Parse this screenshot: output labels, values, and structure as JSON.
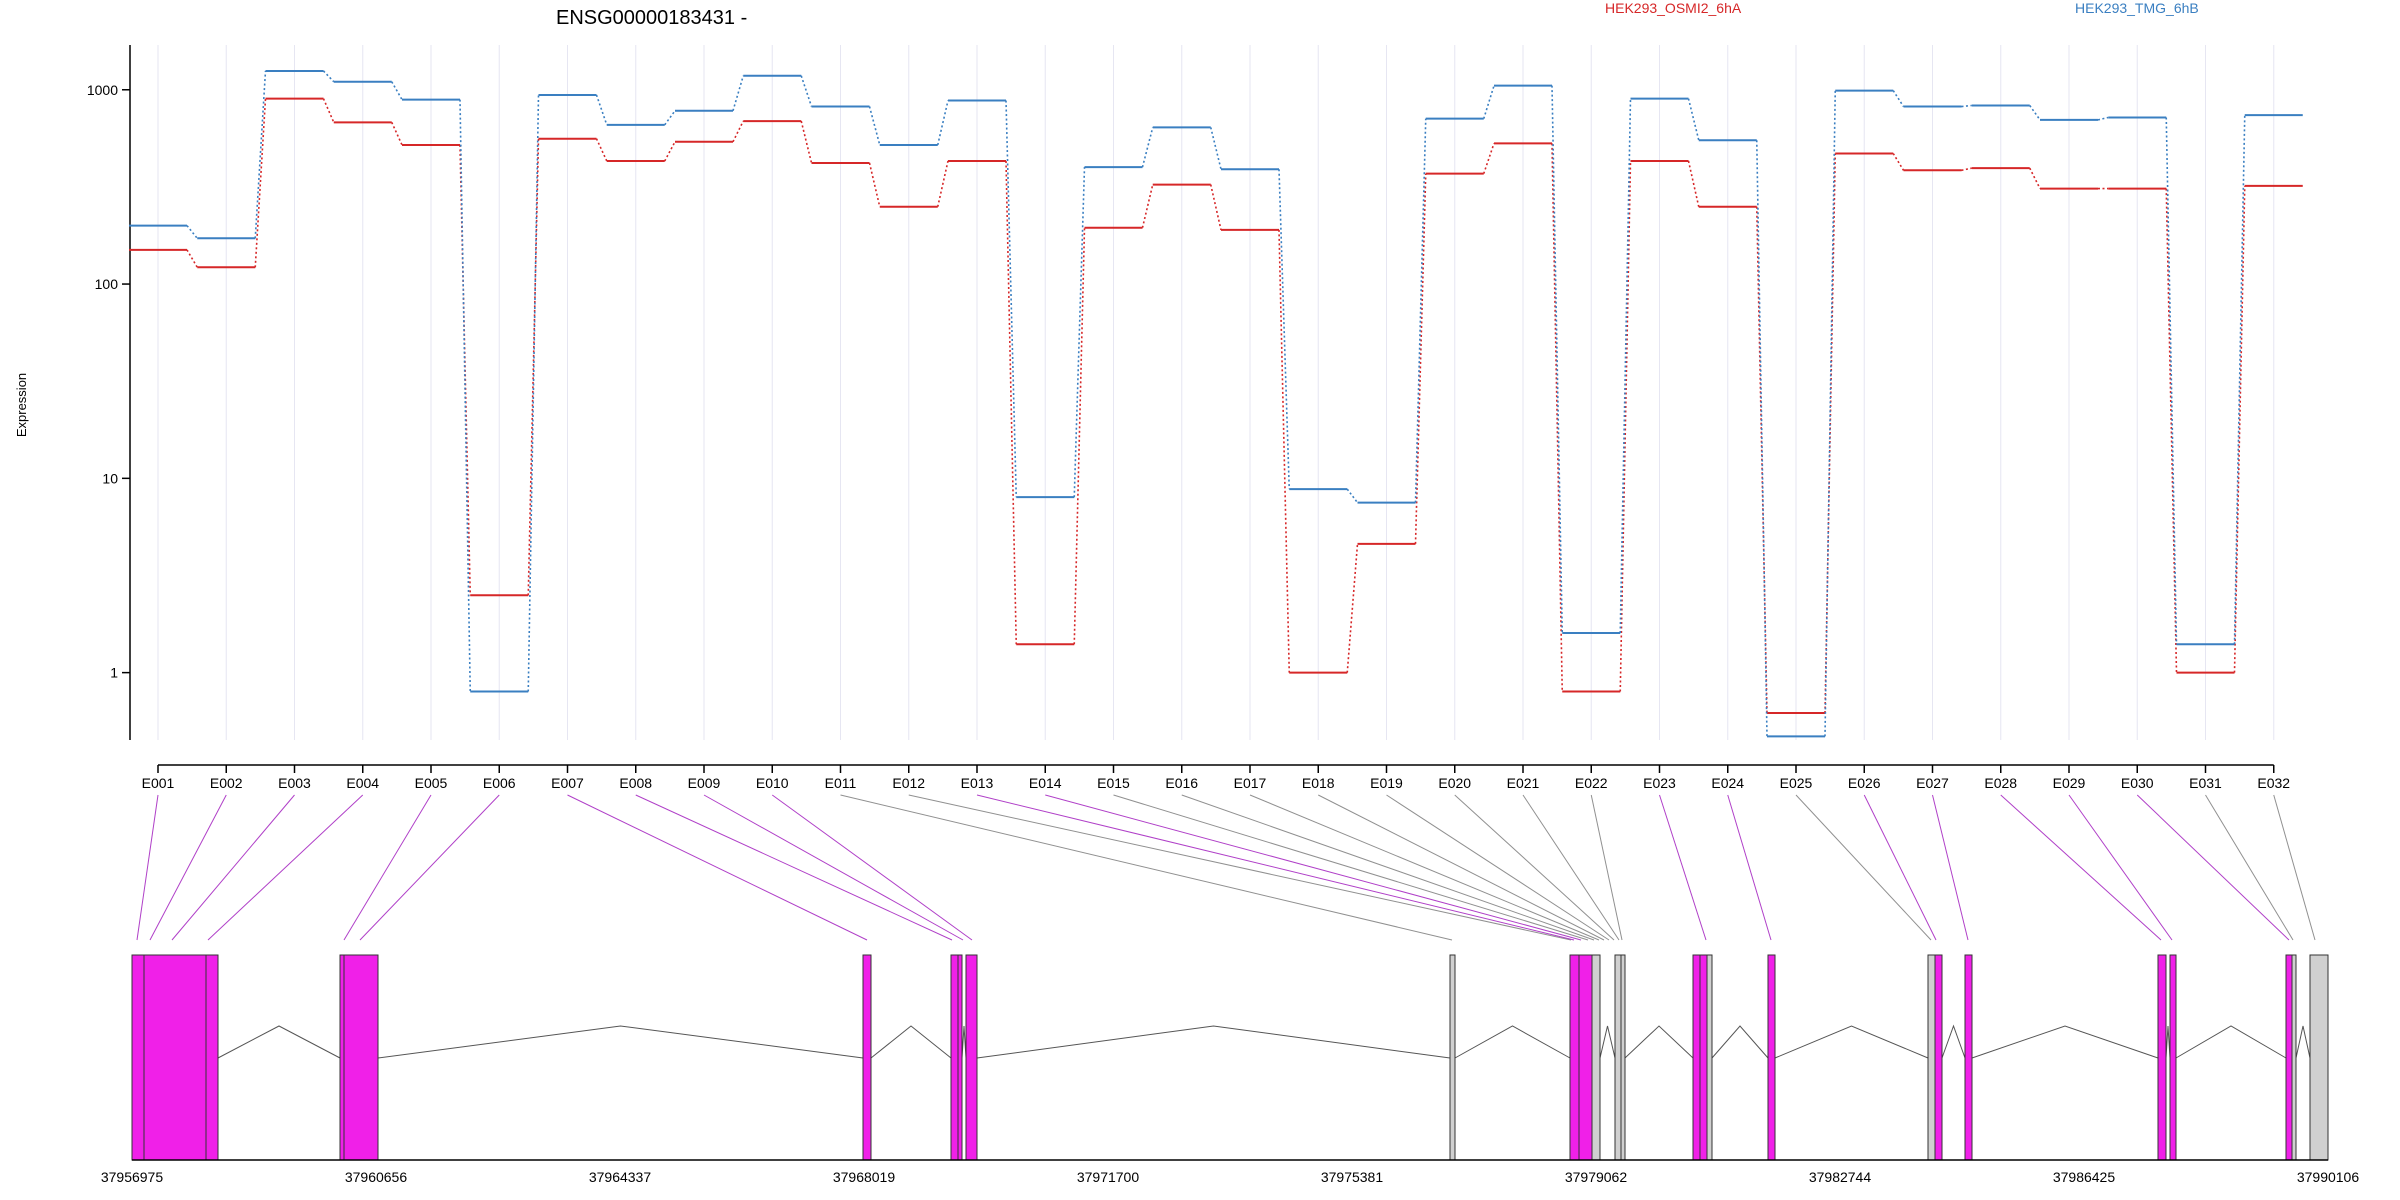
{
  "chart_data": {
    "type": "line",
    "title": "ENSG00000183431 -",
    "ylabel": "Expression",
    "xlabel": "",
    "yscale": "log",
    "ylim": [
      0.45,
      1700
    ],
    "yticks": [
      1,
      10,
      100,
      1000
    ],
    "ytick_labels": [
      "1",
      "10",
      "100",
      "1000"
    ],
    "categories": [
      "E001",
      "E002",
      "E003",
      "E004",
      "E005",
      "E006",
      "E007",
      "E008",
      "E009",
      "E010",
      "E011",
      "E012",
      "E013",
      "E014",
      "E015",
      "E016",
      "E017",
      "E018",
      "E019",
      "E020",
      "E021",
      "E022",
      "E023",
      "E024",
      "E025",
      "E026",
      "E027",
      "E028",
      "E029",
      "E030",
      "E031",
      "E032"
    ],
    "series": [
      {
        "name": "HEK293_OSMI2_6hA",
        "color": "#d62728",
        "values": [
          150,
          122,
          900,
          680,
          520,
          2.5,
          560,
          430,
          540,
          690,
          420,
          250,
          430,
          1.4,
          195,
          325,
          190,
          1.0,
          4.6,
          370,
          530,
          0.8,
          430,
          250,
          0.62,
          470,
          385,
          395,
          310,
          310,
          1.0,
          320
        ]
      },
      {
        "name": "HEK293_TMG_6hB",
        "color": "#3a7fc1",
        "values": [
          200,
          172,
          1250,
          1100,
          890,
          0.8,
          940,
          660,
          780,
          1180,
          820,
          520,
          880,
          8.0,
          400,
          640,
          390,
          8.8,
          7.5,
          710,
          1050,
          1.6,
          900,
          550,
          0.47,
          990,
          820,
          830,
          700,
          720,
          1.4,
          740
        ]
      }
    ],
    "gene_model": {
      "exon_kind": [
        "coding",
        "coding",
        "coding",
        "coding",
        "coding",
        "coding",
        "coding",
        "coding",
        "coding",
        "coding",
        "noncoding",
        "noncoding",
        "coding",
        "coding",
        "noncoding",
        "noncoding",
        "noncoding",
        "noncoding",
        "noncoding",
        "noncoding",
        "noncoding",
        "noncoding",
        "coding",
        "coding",
        "noncoding",
        "coding",
        "coding",
        "coding",
        "coding",
        "coding",
        "noncoding",
        "noncoding"
      ],
      "coord_labels": [
        "37956975",
        "37960656",
        "37964337",
        "37968019",
        "37971700",
        "37975381",
        "37979062",
        "37982744",
        "37986425",
        "37990106"
      ],
      "colors": {
        "coding": "#f020e8",
        "noncoding": "#d0d0d0",
        "connector_coding": "#b040c8",
        "connector_noncoding": "#909090"
      }
    },
    "legend_placement": "top-right",
    "grid": "vertical"
  }
}
